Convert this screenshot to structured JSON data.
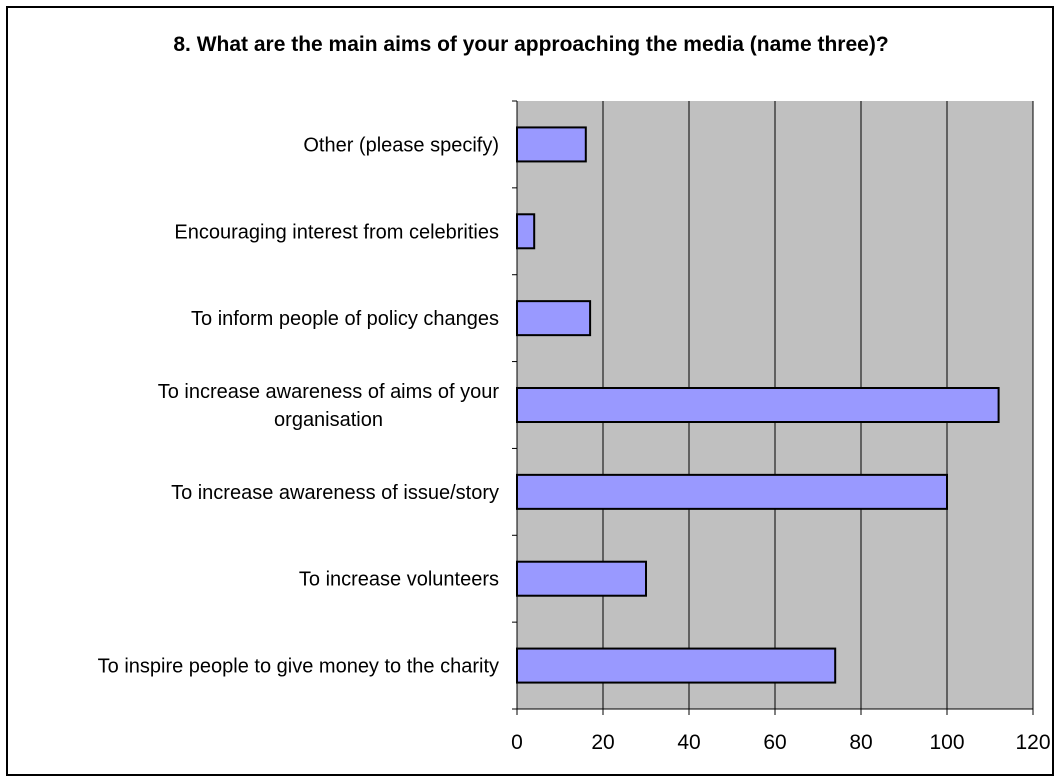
{
  "chart_data": {
    "type": "bar",
    "orientation": "horizontal",
    "title": "8. What are the main aims of your approaching the media (name three)?",
    "categories": [
      "Other (please specify)",
      "Encouraging interest from celebrities",
      "To inform people of policy changes",
      "To increase awareness of aims of your organisation",
      "To increase awareness of issue/story",
      "To increase volunteers",
      "To inspire people to give money to the charity"
    ],
    "category_lines": [
      [
        "Other (please specify)"
      ],
      [
        "Encouraging interest from celebrities"
      ],
      [
        "To inform people of policy changes"
      ],
      [
        "To increase awareness of aims of your",
        "organisation"
      ],
      [
        "To increase awareness of issue/story"
      ],
      [
        "To increase volunteers"
      ],
      [
        "To inspire people to give money to the charity"
      ]
    ],
    "values": [
      16,
      4,
      17,
      112,
      100,
      30,
      74
    ],
    "xlim": [
      0,
      120
    ],
    "xticks": [
      0,
      20,
      40,
      60,
      80,
      100,
      120
    ],
    "xlabel": "",
    "ylabel": "",
    "grid": true,
    "legend": "none",
    "colors": {
      "bar_fill": "#9999FF",
      "bar_stroke": "#000000",
      "plot_background": "#C0C0C0",
      "gridline": "#000000"
    }
  }
}
